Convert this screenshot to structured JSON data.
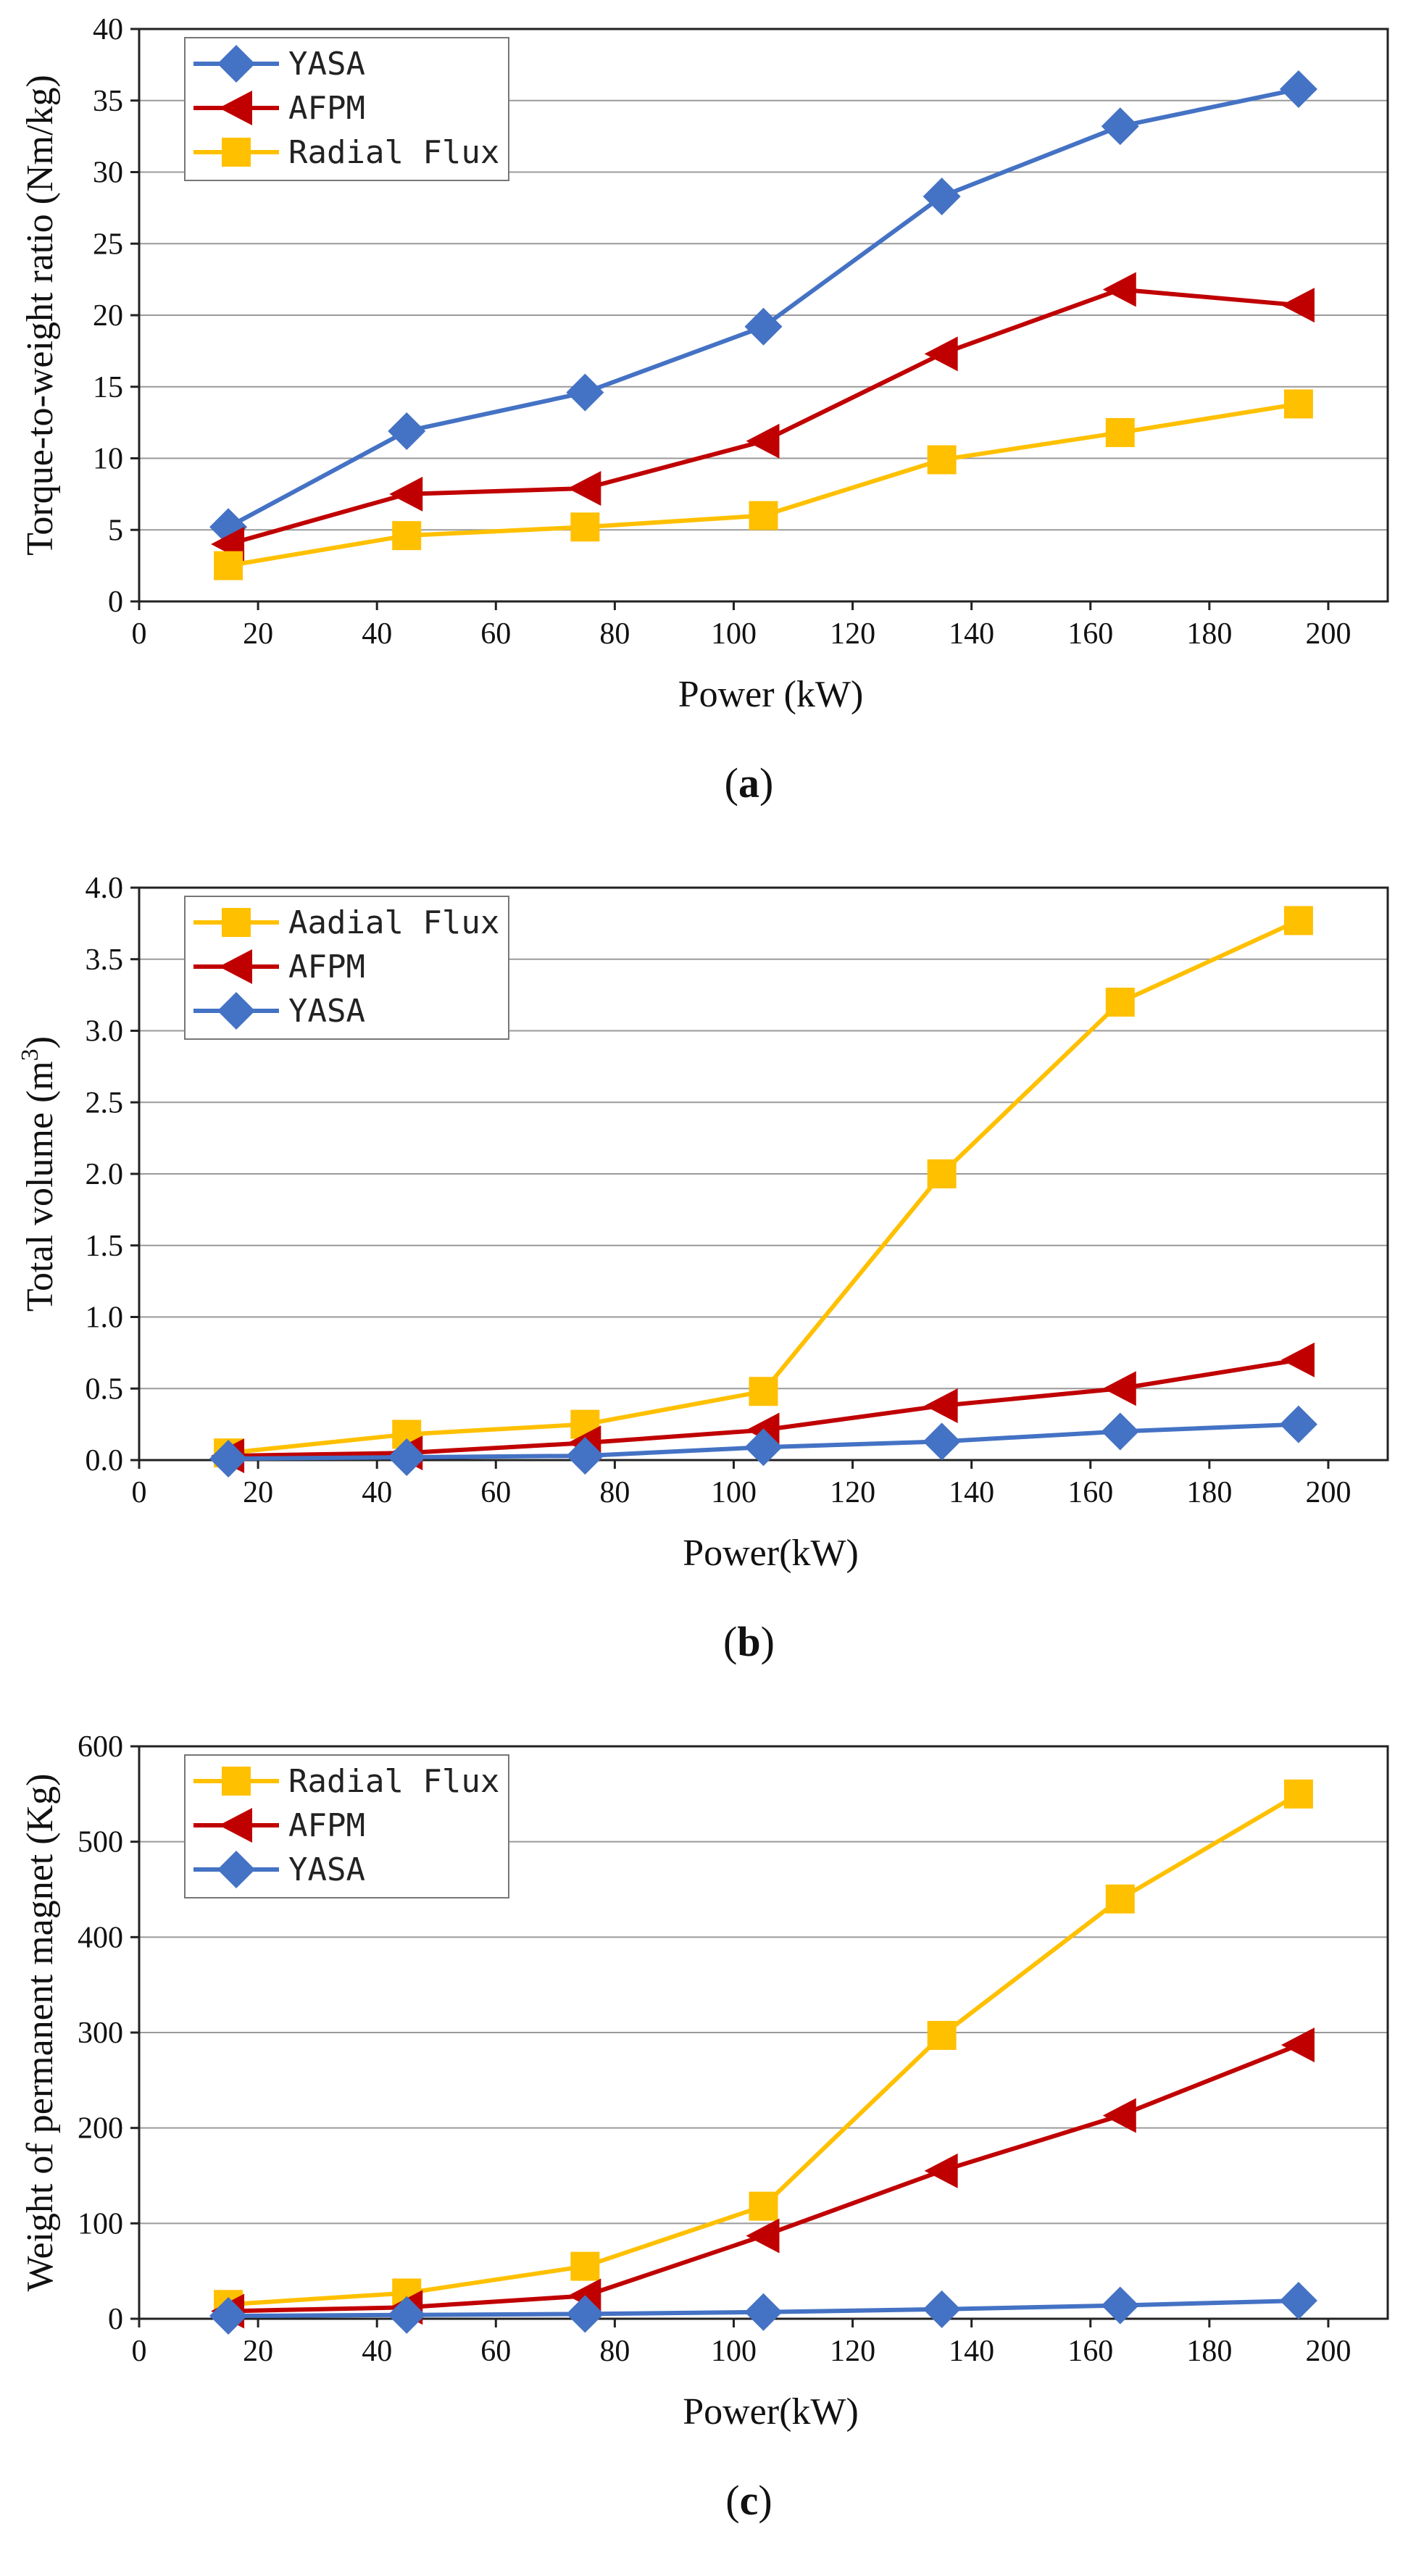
{
  "chart_data": [
    {
      "type": "line",
      "caption": "(a)",
      "caption_letter": "a",
      "xlabel": "Power (kW)",
      "ylabel": "Torque-to-weight ratio (Nm/kg)",
      "xlim": [
        0,
        210
      ],
      "ylim": [
        0,
        40
      ],
      "xticks": [
        0,
        20,
        40,
        60,
        80,
        100,
        120,
        140,
        160,
        180,
        200
      ],
      "yticks": [
        0,
        5,
        10,
        15,
        20,
        25,
        30,
        35,
        40
      ],
      "ytick_labels": [
        "0",
        "5",
        "10",
        "15",
        "20",
        "25",
        "30",
        "35",
        "40"
      ],
      "grid": "horizontal",
      "legend_position": "top-left",
      "x": [
        15,
        45,
        75,
        105,
        135,
        165,
        195
      ],
      "series": [
        {
          "name": "YASA",
          "marker": "diamond",
          "color": "#4472C4",
          "values": [
            5.2,
            11.9,
            14.6,
            19.2,
            28.3,
            33.2,
            35.8
          ]
        },
        {
          "name": "AFPM",
          "marker": "triangle-left",
          "color": "#C00000",
          "values": [
            4.0,
            7.5,
            7.9,
            11.2,
            17.3,
            21.8,
            20.7
          ]
        },
        {
          "name": "Radial Flux",
          "marker": "square",
          "color": "#FFC000",
          "values": [
            2.5,
            4.6,
            5.2,
            6.0,
            9.9,
            11.8,
            13.8
          ]
        }
      ]
    },
    {
      "type": "line",
      "caption": "(b)",
      "caption_letter": "b",
      "xlabel": "Power(kW)",
      "ylabel_main": "Total volume (m",
      "ylabel_sup": "3",
      "ylabel_end": ")",
      "xlim": [
        0,
        210
      ],
      "ylim": [
        0,
        4
      ],
      "xticks": [
        0,
        20,
        40,
        60,
        80,
        100,
        120,
        140,
        160,
        180,
        200
      ],
      "yticks": [
        0,
        0.5,
        1,
        1.5,
        2,
        2.5,
        3,
        3.5,
        4
      ],
      "ytick_labels": [
        "0.0",
        "0.5",
        "1.0",
        "1.5",
        "2.0",
        "2.5",
        "3.0",
        "3.5",
        "4.0"
      ],
      "grid": "horizontal",
      "legend_position": "top-left",
      "x": [
        15,
        45,
        75,
        105,
        135,
        165,
        195
      ],
      "series": [
        {
          "name": "Aadial Flux",
          "marker": "square",
          "color": "#FFC000",
          "values": [
            0.05,
            0.18,
            0.25,
            0.48,
            2.0,
            3.2,
            3.77
          ]
        },
        {
          "name": "AFPM",
          "marker": "triangle-left",
          "color": "#C00000",
          "values": [
            0.03,
            0.05,
            0.12,
            0.21,
            0.38,
            0.5,
            0.7
          ]
        },
        {
          "name": "YASA",
          "marker": "diamond",
          "color": "#4472C4",
          "values": [
            0.01,
            0.02,
            0.03,
            0.09,
            0.13,
            0.2,
            0.25
          ]
        }
      ]
    },
    {
      "type": "line",
      "caption": "(c)",
      "caption_letter": "c",
      "xlabel": "Power(kW)",
      "ylabel": "Weight of permanent magnet (Kg)",
      "xlim": [
        0,
        210
      ],
      "ylim": [
        0,
        600
      ],
      "xticks": [
        0,
        20,
        40,
        60,
        80,
        100,
        120,
        140,
        160,
        180,
        200
      ],
      "yticks": [
        0,
        100,
        200,
        300,
        400,
        500,
        600
      ],
      "ytick_labels": [
        "0",
        "100",
        "200",
        "300",
        "400",
        "500",
        "600"
      ],
      "grid": "horizontal",
      "legend_position": "top-left",
      "x": [
        15,
        45,
        75,
        105,
        135,
        165,
        195
      ],
      "series": [
        {
          "name": "Radial Flux",
          "marker": "square",
          "color": "#FFC000",
          "values": [
            15,
            27,
            55,
            118,
            297,
            440,
            550
          ]
        },
        {
          "name": "AFPM",
          "marker": "triangle-left",
          "color": "#C00000",
          "values": [
            8,
            12,
            24,
            87,
            155,
            213,
            287
          ]
        },
        {
          "name": "YASA",
          "marker": "diamond",
          "color": "#4472C4",
          "values": [
            3,
            4,
            5,
            7,
            10,
            14,
            19
          ]
        }
      ]
    }
  ]
}
